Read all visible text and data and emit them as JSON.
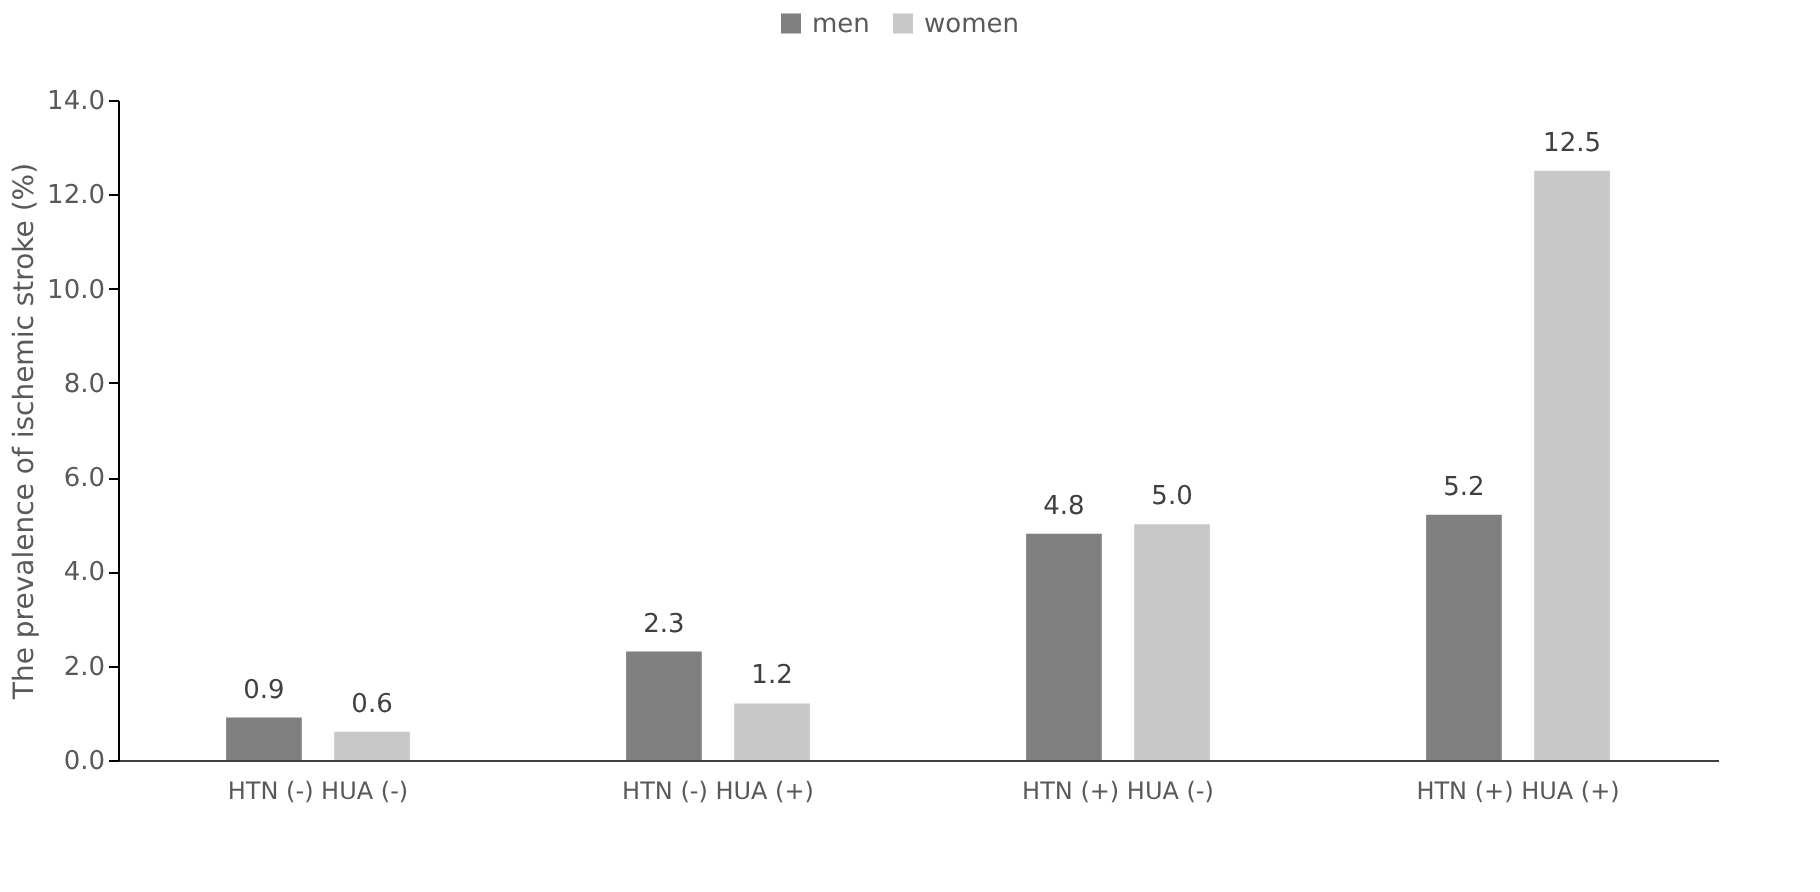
{
  "chart_data": {
    "type": "bar",
    "ylabel": "The prevalence of ischemic stroke (%)",
    "categories": [
      "HTN (-) HUA (-)",
      "HTN (-) HUA (+)",
      "HTN (+) HUA (-)",
      "HTN (+) HUA (+)"
    ],
    "series": [
      {
        "name": "men",
        "color": "#808080",
        "values": [
          0.9,
          2.3,
          4.8,
          5.2
        ],
        "value_labels": [
          "0.9",
          "2.3",
          "4.8",
          "5.2"
        ]
      },
      {
        "name": "women",
        "color": "#c8c8c8",
        "values": [
          0.6,
          1.2,
          5.0,
          12.5
        ],
        "value_labels": [
          "0.6",
          "1.2",
          "5.0",
          "12.5"
        ]
      }
    ],
    "ylim": [
      0,
      14
    ],
    "yticks": [
      {
        "value": 0,
        "label": "0.0"
      },
      {
        "value": 2,
        "label": "2.0"
      },
      {
        "value": 4,
        "label": "4.0"
      },
      {
        "value": 6,
        "label": "6.0"
      },
      {
        "value": 8,
        "label": "8.0"
      },
      {
        "value": 10,
        "label": "10.0"
      },
      {
        "value": 12,
        "label": "12.0"
      },
      {
        "value": 14,
        "label": "14.0"
      }
    ],
    "grid": false,
    "legend": "top"
  }
}
